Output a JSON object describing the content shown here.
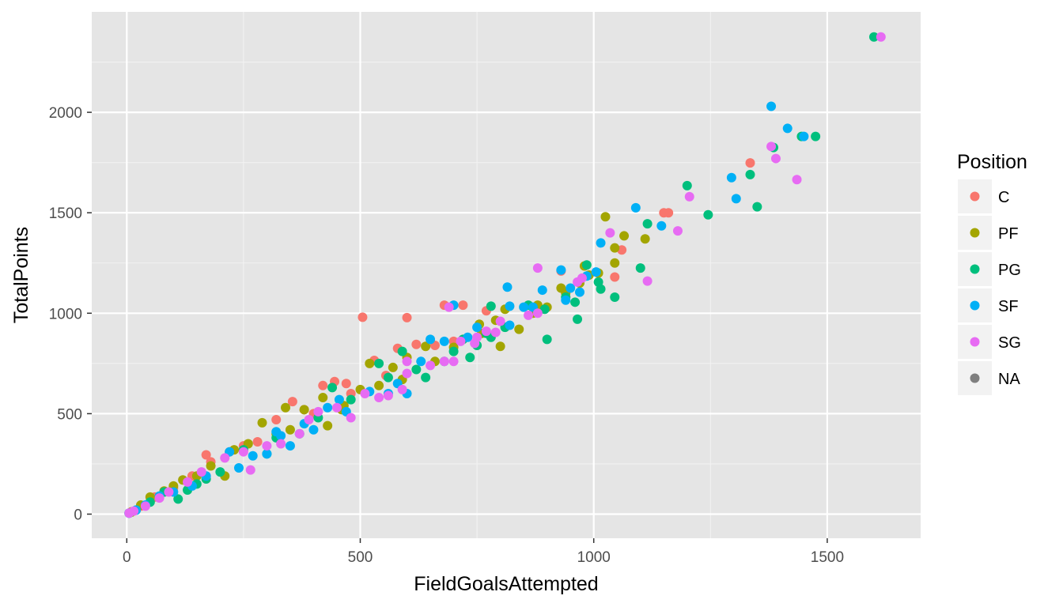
{
  "chart_data": {
    "type": "scatter",
    "title": "",
    "xlabel": "FieldGoalsAttempted",
    "ylabel": "TotalPoints",
    "xlim": [
      -75,
      1700
    ],
    "ylim": [
      -120,
      2500
    ],
    "x_ticks": [
      0,
      500,
      1000,
      1500
    ],
    "y_ticks": [
      0,
      500,
      1000,
      1500,
      2000
    ],
    "x_tick_labels": [
      "0",
      "500",
      "1000",
      "1500"
    ],
    "y_tick_labels": [
      "0",
      "500",
      "1000",
      "1500",
      "2000"
    ],
    "grid": true,
    "background": "#e5e5e5",
    "legend": {
      "title": "Position",
      "placement": "right"
    },
    "series": [
      {
        "name": "C",
        "color": "#F8766D",
        "points": [
          [
            505,
            980
          ],
          [
            600,
            978
          ],
          [
            680,
            1040
          ],
          [
            720,
            1040
          ],
          [
            770,
            1012
          ],
          [
            930,
            1210
          ],
          [
            1045,
            1180
          ],
          [
            1060,
            1315
          ],
          [
            1150,
            1500
          ],
          [
            1160,
            1500
          ],
          [
            1335,
            1748
          ],
          [
            420,
            640
          ],
          [
            445,
            660
          ],
          [
            470,
            650
          ],
          [
            355,
            560
          ],
          [
            580,
            825
          ],
          [
            620,
            845
          ],
          [
            170,
            295
          ],
          [
            320,
            470
          ],
          [
            555,
            690
          ],
          [
            530,
            765
          ],
          [
            660,
            840
          ],
          [
            400,
            500
          ],
          [
            250,
            340
          ],
          [
            100,
            130
          ],
          [
            60,
            85
          ],
          [
            30,
            40
          ],
          [
            10,
            12
          ],
          [
            280,
            360
          ],
          [
            220,
            310
          ],
          [
            180,
            260
          ],
          [
            140,
            190
          ],
          [
            480,
            600
          ],
          [
            380,
            520
          ],
          [
            700,
            860
          ]
        ]
      },
      {
        "name": "PF",
        "color": "#A3A500",
        "points": [
          [
            1025,
            1480
          ],
          [
            1065,
            1385
          ],
          [
            1045,
            1325
          ],
          [
            1045,
            1250
          ],
          [
            1110,
            1370
          ],
          [
            980,
            1235
          ],
          [
            930,
            1125
          ],
          [
            990,
            1190
          ],
          [
            880,
            1040
          ],
          [
            840,
            920
          ],
          [
            800,
            835
          ],
          [
            790,
            965
          ],
          [
            755,
            945
          ],
          [
            640,
            835
          ],
          [
            590,
            670
          ],
          [
            570,
            730
          ],
          [
            520,
            750
          ],
          [
            600,
            780
          ],
          [
            500,
            620
          ],
          [
            465,
            540
          ],
          [
            430,
            440
          ],
          [
            420,
            580
          ],
          [
            380,
            520
          ],
          [
            340,
            530
          ],
          [
            290,
            455
          ],
          [
            320,
            400
          ],
          [
            260,
            350
          ],
          [
            230,
            320
          ],
          [
            210,
            190
          ],
          [
            180,
            240
          ],
          [
            150,
            190
          ],
          [
            120,
            170
          ],
          [
            100,
            140
          ],
          [
            80,
            115
          ],
          [
            50,
            85
          ],
          [
            30,
            45
          ],
          [
            10,
            10
          ],
          [
            350,
            420
          ],
          [
            460,
            520
          ],
          [
            540,
            640
          ],
          [
            660,
            760
          ],
          [
            700,
            830
          ],
          [
            760,
            900
          ],
          [
            810,
            1020
          ],
          [
            870,
            1000
          ],
          [
            900,
            1030
          ],
          [
            940,
            1100
          ],
          [
            970,
            1150
          ],
          [
            1010,
            1200
          ]
        ]
      },
      {
        "name": "PG",
        "color": "#00BF7D",
        "points": [
          [
            1600,
            2375
          ],
          [
            1445,
            1880
          ],
          [
            1475,
            1880
          ],
          [
            1385,
            1825
          ],
          [
            1335,
            1690
          ],
          [
            1350,
            1530
          ],
          [
            1200,
            1635
          ],
          [
            1245,
            1490
          ],
          [
            1115,
            1445
          ],
          [
            1100,
            1225
          ],
          [
            1045,
            1080
          ],
          [
            1015,
            1120
          ],
          [
            1010,
            1155
          ],
          [
            985,
            1240
          ],
          [
            960,
            1055
          ],
          [
            965,
            970
          ],
          [
            940,
            1080
          ],
          [
            895,
            1020
          ],
          [
            900,
            870
          ],
          [
            860,
            1040
          ],
          [
            810,
            930
          ],
          [
            780,
            1035
          ],
          [
            780,
            880
          ],
          [
            770,
            900
          ],
          [
            750,
            840
          ],
          [
            735,
            780
          ],
          [
            720,
            870
          ],
          [
            700,
            810
          ],
          [
            640,
            680
          ],
          [
            590,
            810
          ],
          [
            540,
            750
          ],
          [
            480,
            570
          ],
          [
            440,
            630
          ],
          [
            410,
            480
          ],
          [
            370,
            400
          ],
          [
            320,
            380
          ],
          [
            300,
            300
          ],
          [
            250,
            320
          ],
          [
            200,
            210
          ],
          [
            170,
            175
          ],
          [
            150,
            150
          ],
          [
            130,
            120
          ],
          [
            110,
            75
          ],
          [
            80,
            110
          ],
          [
            50,
            60
          ],
          [
            20,
            20
          ],
          [
            5,
            5
          ],
          [
            560,
            680
          ],
          [
            620,
            720
          ],
          [
            680,
            760
          ]
        ]
      },
      {
        "name": "SF",
        "color": "#00B0F6",
        "points": [
          [
            1380,
            2030
          ],
          [
            1415,
            1920
          ],
          [
            1450,
            1880
          ],
          [
            1295,
            1675
          ],
          [
            1305,
            1570
          ],
          [
            1090,
            1525
          ],
          [
            1145,
            1435
          ],
          [
            1015,
            1350
          ],
          [
            1005,
            1205
          ],
          [
            930,
            1215
          ],
          [
            950,
            1125
          ],
          [
            970,
            1105
          ],
          [
            985,
            1185
          ],
          [
            940,
            1065
          ],
          [
            890,
            1115
          ],
          [
            870,
            1030
          ],
          [
            850,
            1030
          ],
          [
            820,
            940
          ],
          [
            815,
            1130
          ],
          [
            820,
            1035
          ],
          [
            750,
            930
          ],
          [
            730,
            880
          ],
          [
            700,
            1040
          ],
          [
            680,
            860
          ],
          [
            650,
            870
          ],
          [
            630,
            760
          ],
          [
            600,
            600
          ],
          [
            580,
            650
          ],
          [
            560,
            600
          ],
          [
            520,
            610
          ],
          [
            470,
            510
          ],
          [
            455,
            570
          ],
          [
            430,
            530
          ],
          [
            400,
            420
          ],
          [
            380,
            450
          ],
          [
            350,
            340
          ],
          [
            330,
            390
          ],
          [
            320,
            410
          ],
          [
            300,
            300
          ],
          [
            270,
            290
          ],
          [
            240,
            230
          ],
          [
            220,
            310
          ],
          [
            170,
            190
          ],
          [
            140,
            140
          ],
          [
            100,
            110
          ],
          [
            70,
            90
          ],
          [
            40,
            45
          ],
          [
            20,
            20
          ],
          [
            5,
            5
          ]
        ]
      },
      {
        "name": "SG",
        "color": "#E76BF3",
        "points": [
          [
            1615,
            2375
          ],
          [
            1390,
            1770
          ],
          [
            1380,
            1830
          ],
          [
            1435,
            1665
          ],
          [
            1205,
            1580
          ],
          [
            1180,
            1410
          ],
          [
            1035,
            1400
          ],
          [
            1115,
            1160
          ],
          [
            880,
            1225
          ],
          [
            975,
            1175
          ],
          [
            965,
            1155
          ],
          [
            860,
            990
          ],
          [
            800,
            960
          ],
          [
            790,
            905
          ],
          [
            770,
            910
          ],
          [
            750,
            880
          ],
          [
            745,
            850
          ],
          [
            715,
            860
          ],
          [
            690,
            1030
          ],
          [
            700,
            760
          ],
          [
            680,
            760
          ],
          [
            650,
            740
          ],
          [
            600,
            700
          ],
          [
            590,
            620
          ],
          [
            560,
            590
          ],
          [
            540,
            580
          ],
          [
            510,
            600
          ],
          [
            480,
            480
          ],
          [
            450,
            530
          ],
          [
            410,
            510
          ],
          [
            390,
            470
          ],
          [
            370,
            400
          ],
          [
            330,
            350
          ],
          [
            300,
            340
          ],
          [
            265,
            220
          ],
          [
            250,
            310
          ],
          [
            210,
            280
          ],
          [
            160,
            210
          ],
          [
            130,
            160
          ],
          [
            90,
            110
          ],
          [
            70,
            80
          ],
          [
            40,
            40
          ],
          [
            15,
            15
          ],
          [
            5,
            5
          ],
          [
            600,
            760
          ],
          [
            880,
            1000
          ]
        ]
      }
    ],
    "legend_entries": [
      {
        "label": "C",
        "color": "#F8766D"
      },
      {
        "label": "PF",
        "color": "#A3A500"
      },
      {
        "label": "PG",
        "color": "#00BF7D"
      },
      {
        "label": "SF",
        "color": "#00B0F6"
      },
      {
        "label": "SG",
        "color": "#E76BF3"
      },
      {
        "label": "NA",
        "color": "#7F7F7F"
      }
    ]
  }
}
